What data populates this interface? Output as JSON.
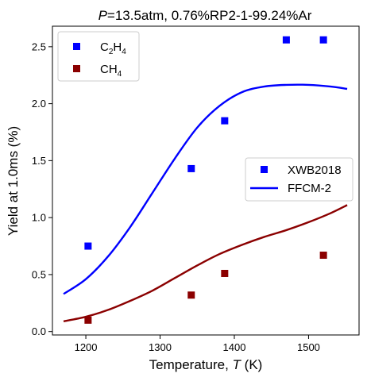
{
  "chart_data": {
    "type": "scatter",
    "title_italic": "P",
    "title_rest": "=13.5atm, 0.76%RP2-1-99.24%Ar",
    "xlabel_prefix": "Temperature, ",
    "xlabel_italic": "T",
    "xlabel_suffix": " (K)",
    "ylabel": "Yield at 1.0ms (%)",
    "xlim": [
      1155,
      1568
    ],
    "ylim": [
      -0.03,
      2.68
    ],
    "xticks": [
      1200,
      1300,
      1400,
      1500
    ],
    "xtick_labels": [
      "1200",
      "1300",
      "1400",
      "1500"
    ],
    "yticks": [
      0.0,
      0.5,
      1.0,
      1.5,
      2.0,
      2.5
    ],
    "ytick_labels": [
      "0.0",
      "0.5",
      "1.0",
      "1.5",
      "2.0",
      "2.5"
    ],
    "grid": false,
    "series": [
      {
        "name": "C2H4",
        "kind": "markers",
        "color": "#0000ff",
        "x": [
          1203,
          1342,
          1387,
          1470,
          1520
        ],
        "y": [
          0.75,
          1.43,
          1.85,
          2.56,
          2.56
        ]
      },
      {
        "name": "CH4",
        "kind": "markers",
        "color": "#8b0000",
        "x": [
          1203,
          1342,
          1387,
          1520
        ],
        "y": [
          0.1,
          0.32,
          0.51,
          0.67
        ]
      },
      {
        "name": "C2H4 model",
        "kind": "line",
        "color": "#0000ff",
        "x": [
          1170,
          1200,
          1230,
          1260,
          1290,
          1320,
          1350,
          1380,
          1410,
          1440,
          1470,
          1500,
          1530,
          1552
        ],
        "y": [
          0.33,
          0.46,
          0.66,
          0.92,
          1.22,
          1.52,
          1.79,
          1.98,
          2.1,
          2.15,
          2.165,
          2.165,
          2.15,
          2.13
        ]
      },
      {
        "name": "CH4 model",
        "kind": "line",
        "color": "#8b0000",
        "x": [
          1170,
          1200,
          1230,
          1260,
          1290,
          1320,
          1350,
          1380,
          1410,
          1440,
          1470,
          1500,
          1530,
          1552
        ],
        "y": [
          0.09,
          0.13,
          0.19,
          0.27,
          0.36,
          0.47,
          0.58,
          0.68,
          0.76,
          0.83,
          0.89,
          0.96,
          1.04,
          1.11
        ]
      }
    ],
    "legend_species": {
      "placement": "top-left",
      "entries": [
        {
          "sym": "C",
          "sub1": "2",
          "mid": "H",
          "sub2": "4",
          "color": "#0000ff"
        },
        {
          "sym": "CH",
          "sub1": "4",
          "mid": "",
          "sub2": "",
          "color": "#8b0000"
        }
      ]
    },
    "legend_source": {
      "placement": "center-right",
      "marker_label": "XWB2018",
      "line_label": "FFCM-2",
      "color": "#0000ff"
    }
  }
}
